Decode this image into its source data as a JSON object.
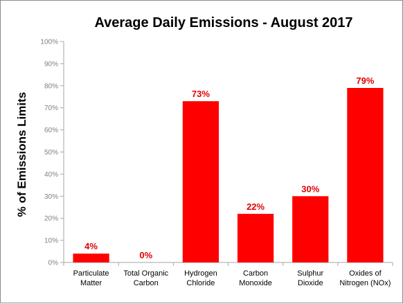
{
  "chart_data": {
    "type": "bar",
    "title": "Average Daily Emissions  - August 2017",
    "xlabel": "",
    "ylabel": "% of Emissions Limits",
    "ylim": [
      0,
      100
    ],
    "yticks": [
      "0%",
      "10%",
      "20%",
      "30%",
      "40%",
      "50%",
      "60%",
      "70%",
      "80%",
      "90%",
      "100%"
    ],
    "categories": [
      [
        "Particulate",
        "Matter"
      ],
      [
        "Total Organic",
        "Carbon"
      ],
      [
        "Hydrogen",
        "Chloride"
      ],
      [
        "Carbon",
        "Monoxide"
      ],
      [
        "Sulphur",
        "Dioxide"
      ],
      [
        "Oxides of",
        "Nitrogen (NOx)"
      ]
    ],
    "values": [
      4,
      0,
      73,
      22,
      30,
      79
    ],
    "data_labels": [
      "4%",
      "0%",
      "73%",
      "22%",
      "30%",
      "79%"
    ],
    "bar_color": "#ff0000",
    "label_color": "#e00000",
    "grid": false,
    "legend": "none"
  }
}
